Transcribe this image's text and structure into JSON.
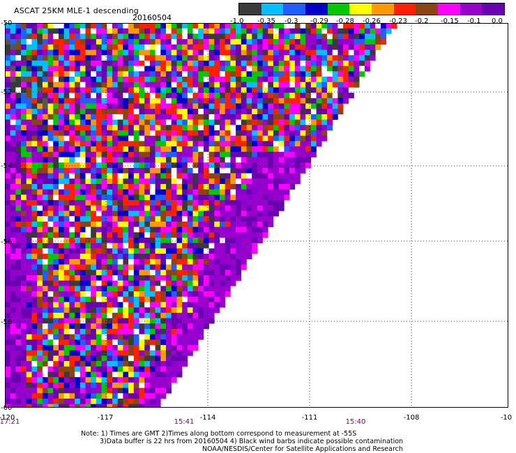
{
  "title": "ASCAT 25KM MLE-1 descending",
  "date": "20160504",
  "colorbar": {
    "tick_labels": [
      "-1.0",
      "-0.35",
      "-0.3",
      "-0.29",
      "-0.28",
      "-0.26",
      "-0.23",
      "-0.2",
      "-0.15",
      "-0.1",
      "0.0"
    ],
    "colors": [
      "#3a3a3a",
      "#00bfff",
      "#1f5fff",
      "#0000c8",
      "#00c800",
      "#ffff00",
      "#ff9900",
      "#ff2000",
      "#8b4513",
      "#ff00ff",
      "#9900cc",
      "#6a00b0"
    ]
  },
  "map": {
    "lon_ticks": [
      "-120",
      "-117",
      "-114",
      "-111",
      "-108",
      "-10"
    ],
    "lat_ticks": [
      "-50",
      "-52",
      "-54",
      "-56",
      "-58",
      "-60"
    ],
    "time_labels": [
      "17:21",
      "15:41",
      "15:40"
    ]
  },
  "notes": {
    "line1": "Note: 1) Times are GMT 2)Times along bottom correspond to measurement at -55S",
    "line2": "3)Data buffer is 22 hrs from 20160504 4) Black wind barbs indicate possible contamination",
    "line3": "NOAA/NESDIS/Center for Satellite Applications and Research"
  }
}
